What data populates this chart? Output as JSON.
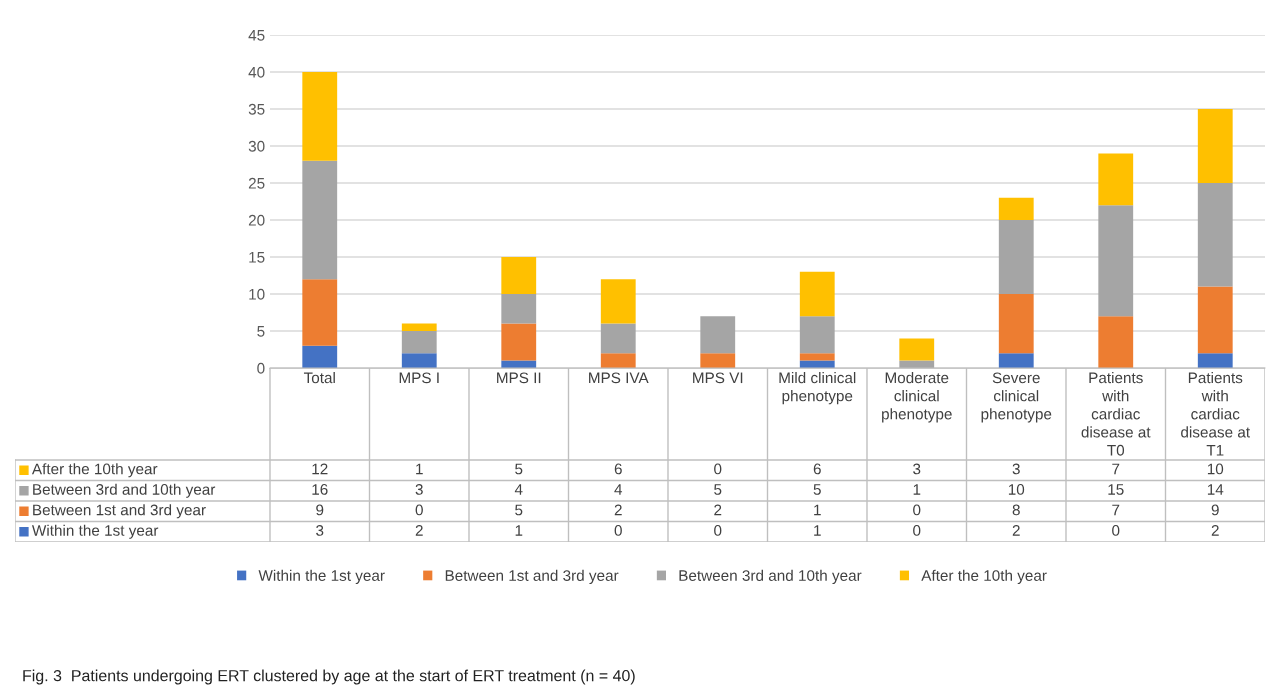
{
  "chart_data": {
    "type": "bar",
    "stacked": true,
    "data_labels": true,
    "grid": "y",
    "legend": "bottom",
    "categories": [
      "Total",
      "MPS I",
      "MPS II",
      "MPS IVA",
      "MPS VI",
      "Mild clinical\nphenotype",
      "Moderate\nclinical\nphenotype",
      "Severe\nclinical\nphenotype",
      "Patients\nwith\ncardiac\ndisease at\nT0",
      "Patients\nwith\ncardiac\ndisease at\nT1"
    ],
    "series": [
      {
        "name": "Within the 1st year",
        "color": "#4472c4",
        "values": [
          3,
          2,
          1,
          0,
          0,
          1,
          0,
          2,
          0,
          2
        ]
      },
      {
        "name": "Between 1st and 3rd year",
        "color": "#ed7d31",
        "values": [
          9,
          0,
          5,
          2,
          2,
          1,
          0,
          8,
          7,
          9
        ]
      },
      {
        "name": "Between 3rd and 10th year",
        "color": "#a5a5a5",
        "values": [
          16,
          3,
          4,
          4,
          5,
          5,
          1,
          10,
          15,
          14
        ]
      },
      {
        "name": "After the 10th year",
        "color": "#ffc000",
        "values": [
          12,
          1,
          5,
          6,
          0,
          6,
          3,
          3,
          7,
          10
        ]
      }
    ],
    "ylim": [
      0,
      45
    ],
    "yticks": [
      0,
      5,
      10,
      15,
      20,
      25,
      30,
      35,
      40,
      45
    ],
    "annotations": [
      "Fig. 3  Patients undergoing ERT clustered by age at the start of ERT treatment (n = 40)"
    ]
  }
}
